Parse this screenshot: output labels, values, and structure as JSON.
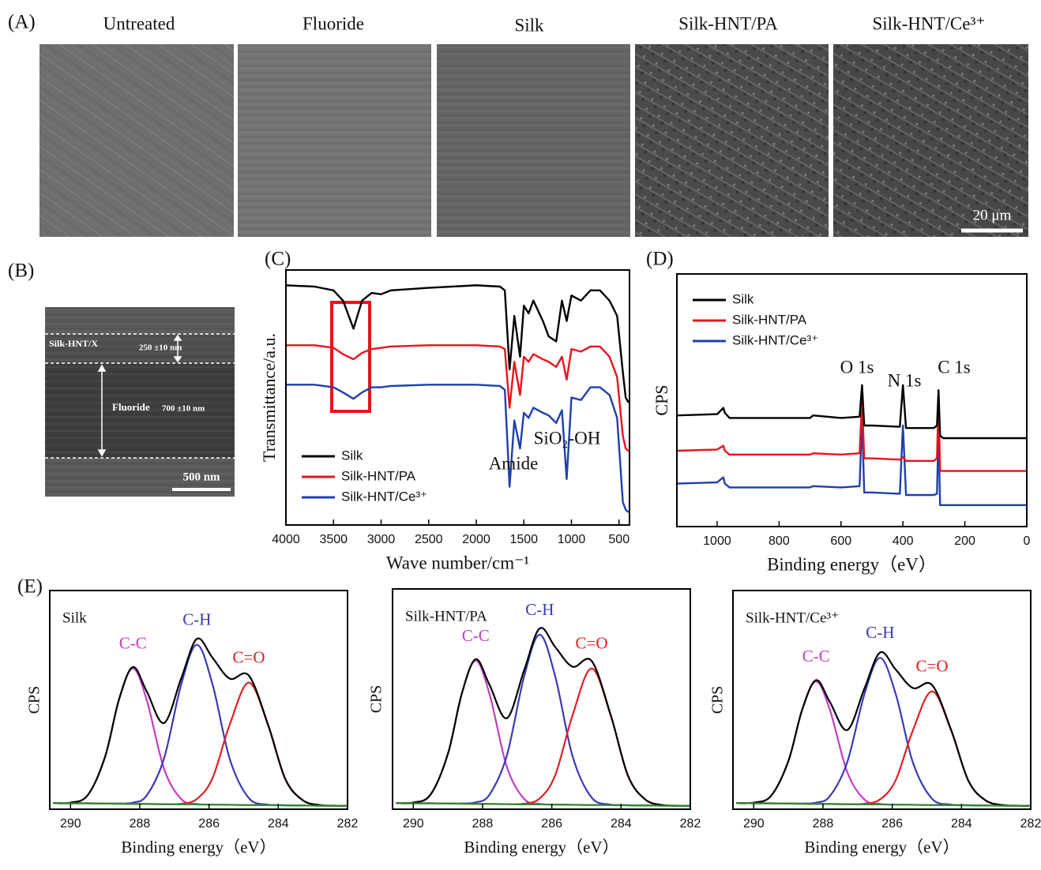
{
  "panel_a": {
    "label": "(A)",
    "captions": [
      "Untreated",
      "Fluoride",
      "Silk",
      "Silk-HNT/PA",
      "Silk-HNT/Ce³⁺"
    ],
    "scale_bar": "20 μm"
  },
  "panel_b": {
    "label": "(B)",
    "layer_top": "Silk-HNT/X",
    "layer_top_thickness": "250 ±10 nm",
    "layer_bottom": "Fluoride",
    "layer_bottom_thickness": "700 ±10 nm",
    "scale_bar": "500 nm"
  },
  "chart_data": [
    {
      "panel_label": "(C)",
      "type": "line",
      "xlabel": "Wave number/cm⁻¹",
      "ylabel": "Transmittance/a.u.",
      "x": [
        4000,
        3700,
        3500,
        3400,
        3290,
        3200,
        3100,
        3000,
        2900,
        2500,
        2000,
        1750,
        1700,
        1650,
        1600,
        1540,
        1500,
        1450,
        1400,
        1300,
        1240,
        1160,
        1100,
        1050,
        1000,
        900,
        800,
        700,
        600,
        520,
        460,
        430,
        400
      ],
      "xlim": [
        4000,
        390
      ],
      "xticks": [
        4000,
        3500,
        3000,
        2500,
        2000,
        1500,
        1000,
        500
      ],
      "ylim": [
        0,
        100
      ],
      "legend": "lower left",
      "annotations": [
        "Amide",
        "SiO₂-OH"
      ],
      "series": [
        {
          "name": "Silk",
          "color": "#000000",
          "values": [
            94,
            93.5,
            92,
            88,
            77,
            88,
            91,
            90.5,
            92,
            93,
            94,
            93.5,
            92,
            61,
            82,
            66,
            86,
            83,
            88,
            80,
            74,
            72,
            88,
            80,
            90,
            88,
            92,
            92,
            88,
            82,
            60,
            50,
            48
          ]
        },
        {
          "name": "Silk-HNT/PA",
          "color": "#e8141b",
          "values": [
            70.5,
            70.5,
            69.5,
            67,
            65,
            67.5,
            69,
            69.5,
            70,
            70.5,
            70.5,
            70,
            69,
            46,
            64,
            51,
            66,
            64,
            67,
            65,
            64,
            62,
            66,
            57,
            69,
            68,
            70,
            70,
            66,
            58,
            35,
            30,
            29
          ]
        },
        {
          "name": "Silk-HNT/Ce³⁺",
          "color": "#1f3fae",
          "values": [
            55,
            55,
            54,
            52,
            49.5,
            52,
            54,
            54,
            54.5,
            55,
            55,
            54.5,
            53,
            15,
            41,
            30,
            44,
            42,
            46,
            44,
            43,
            40,
            45,
            18,
            50,
            49,
            54,
            54,
            51,
            42,
            9,
            6,
            5
          ]
        }
      ]
    },
    {
      "panel_label": "(D)",
      "type": "line",
      "xlabel": "Binding energy（eV）",
      "ylabel": "CPS",
      "x": [
        1130,
        1000,
        980,
        975,
        960,
        900,
        700,
        690,
        600,
        540,
        532,
        525,
        500,
        410,
        400,
        390,
        300,
        290,
        285,
        280,
        270,
        100,
        0
      ],
      "xlim": [
        1130,
        0
      ],
      "xticks": [
        1000,
        800,
        600,
        400,
        200,
        0
      ],
      "ylim": [
        0,
        100
      ],
      "legend": "upper left",
      "annotations": [
        "O 1s",
        "N 1s",
        "C 1s"
      ],
      "series": [
        {
          "name": "Silk",
          "color": "#000000",
          "values": [
            44,
            44.5,
            47,
            45,
            43,
            43,
            43,
            44,
            43,
            43.5,
            56,
            40,
            40,
            39.5,
            56,
            39,
            39,
            40,
            54,
            36,
            35,
            35,
            35
          ]
        },
        {
          "name": "Silk-HNT/PA",
          "color": "#e8141b",
          "values": [
            30,
            30.5,
            32,
            30,
            28.5,
            28.5,
            28.5,
            29,
            28.5,
            29,
            50,
            27,
            27,
            26.5,
            27.5,
            26,
            26,
            27,
            51,
            22,
            22,
            22,
            22
          ]
        },
        {
          "name": "Silk-HNT/Ce³⁺",
          "color": "#1f3fae",
          "values": [
            17,
            17.5,
            19.5,
            17,
            15.5,
            15.5,
            15.5,
            16,
            15.5,
            16,
            43,
            13.5,
            13.5,
            13,
            40,
            12.5,
            12.5,
            13,
            39,
            8.5,
            8.5,
            8.5,
            8.5
          ]
        }
      ]
    },
    {
      "panel_label": "(E)",
      "type": "line",
      "smooth": true,
      "title": "Silk",
      "xlabel": "Binding energy（eV）",
      "ylabel": "CPS",
      "x": [
        290.5,
        290,
        289.5,
        289,
        288.6,
        288.2,
        287.8,
        287.3,
        286.8,
        286.35,
        285.9,
        285.4,
        284.85,
        284.3,
        283.8,
        283.3,
        282.8,
        282.3,
        282
      ],
      "xlim": [
        290.6,
        282
      ],
      "xticks": [
        290,
        288,
        286,
        284,
        282
      ],
      "ylim": [
        0,
        100
      ],
      "series": [
        {
          "name": "C-C",
          "color": "#c23ec2",
          "values": [
            2.8,
            3.0,
            6.5,
            24.1,
            50.1,
            64.4,
            50.0,
            18.5,
            4.6,
            2.4,
            2.1,
            2.0,
            1.9,
            1.9,
            1.8,
            1.7,
            1.6,
            1.6,
            1.5
          ]
        },
        {
          "name": "C-H",
          "color": "#3a3ab8",
          "values": [
            2.8,
            2.7,
            2.7,
            2.6,
            2.6,
            3.0,
            6.3,
            23.2,
            57.3,
            75.2,
            57.2,
            22.9,
            5.1,
            2.1,
            1.8,
            1.7,
            1.6,
            1.6,
            1.5
          ]
        },
        {
          "name": "C=O",
          "color": "#e02020",
          "values": [
            2.8,
            2.7,
            2.7,
            2.6,
            2.5,
            2.4,
            2.4,
            2.3,
            2.5,
            4.7,
            14.2,
            38.8,
            57.9,
            38.7,
            13.9,
            4.2,
            1.9,
            1.6,
            1.5
          ]
        },
        {
          "color": "#000000",
          "values": [
            2.8,
            3.0,
            6.5,
            24.1,
            50.2,
            65.0,
            53.9,
            39.4,
            60.0,
            77.9,
            69.3,
            59.7,
            61.1,
            38.9,
            13.9,
            4.2,
            1.9,
            1.6,
            1.5
          ]
        },
        {
          "color": "#2e8b2e",
          "values": [
            2.8,
            2.7,
            2.7,
            2.6,
            2.5,
            2.4,
            2.4,
            2.3,
            2.2,
            2.2,
            2.1,
            2.0,
            1.9,
            1.9,
            1.8,
            1.7,
            1.6,
            1.6,
            1.5
          ]
        }
      ]
    },
    {
      "type": "line",
      "smooth": true,
      "title": "Silk-HNT/PA",
      "xlabel": "Binding energy（eV）",
      "ylabel": "CPS",
      "x": [
        290.5,
        290,
        289.5,
        289,
        288.6,
        288.2,
        287.8,
        287.3,
        286.8,
        286.35,
        285.9,
        285.4,
        284.85,
        284.3,
        283.8,
        283.3,
        282.8,
        282.3,
        282
      ],
      "xlim": [
        290.6,
        282
      ],
      "xticks": [
        290,
        288,
        286,
        284,
        282
      ],
      "ylim": [
        0,
        100
      ],
      "series": [
        {
          "name": "C-C",
          "color": "#c23ec2",
          "values": [
            2.8,
            3.0,
            6.7,
            25.2,
            52.4,
            67.4,
            52.3,
            19.3,
            4.7,
            2.4,
            2.1,
            2.0,
            1.9,
            1.9,
            1.8,
            1.7,
            1.6,
            1.6,
            1.5
          ]
        },
        {
          "name": "C-H",
          "color": "#3a3ab8",
          "values": [
            2.8,
            2.7,
            2.7,
            2.6,
            2.6,
            3.1,
            6.6,
            24.3,
            60.3,
            79.2,
            60.2,
            24.0,
            5.3,
            2.1,
            1.8,
            1.7,
            1.6,
            1.6,
            1.5
          ]
        },
        {
          "name": "C=O",
          "color": "#e02020",
          "values": [
            2.8,
            2.7,
            2.7,
            2.6,
            2.5,
            2.4,
            2.4,
            2.3,
            2.5,
            4.9,
            15.5,
            42.7,
            63.9,
            42.6,
            15.2,
            4.4,
            1.9,
            1.6,
            1.5
          ]
        },
        {
          "color": "#000000",
          "values": [
            2.8,
            3.0,
            6.7,
            25.2,
            52.5,
            68.1,
            56.5,
            41.3,
            63.1,
            82.1,
            73.6,
            64.7,
            67.3,
            42.8,
            15.2,
            4.4,
            1.9,
            1.6,
            1.5
          ]
        },
        {
          "color": "#2e8b2e",
          "values": [
            2.8,
            2.7,
            2.7,
            2.6,
            2.5,
            2.4,
            2.4,
            2.3,
            2.2,
            2.2,
            2.1,
            2.0,
            1.9,
            1.9,
            1.8,
            1.7,
            1.6,
            1.6,
            1.5
          ]
        }
      ]
    },
    {
      "type": "line",
      "smooth": true,
      "title": "Silk-HNT/Ce³⁺",
      "xlabel": "Binding energy（eV）",
      "ylabel": "CPS",
      "x": [
        290.5,
        290,
        289.5,
        289,
        288.6,
        288.2,
        287.8,
        287.3,
        286.8,
        286.35,
        285.9,
        285.4,
        284.85,
        284.3,
        283.8,
        283.3,
        282.8,
        282.3,
        282
      ],
      "xlim": [
        290.6,
        282
      ],
      "xticks": [
        290,
        288,
        286,
        284,
        282
      ],
      "ylim": [
        0,
        100
      ],
      "series": [
        {
          "name": "C-C",
          "color": "#c23ec2",
          "values": [
            2.8,
            3.0,
            6.1,
            22.0,
            45.5,
            58.4,
            45.4,
            17.0,
            4.4,
            2.4,
            2.1,
            2.0,
            1.9,
            1.9,
            1.8,
            1.7,
            1.6,
            1.6,
            1.5
          ]
        },
        {
          "name": "C-H",
          "color": "#3a3ab8",
          "values": [
            2.8,
            2.7,
            2.7,
            2.6,
            2.6,
            3.0,
            6.0,
            21.5,
            52.8,
            69.2,
            52.7,
            21.2,
            4.8,
            2.1,
            1.8,
            1.7,
            1.6,
            1.6,
            1.5
          ]
        },
        {
          "name": "C=O",
          "color": "#e02020",
          "values": [
            2.8,
            2.7,
            2.7,
            2.6,
            2.5,
            2.4,
            2.4,
            2.3,
            2.5,
            4.5,
            13.3,
            36.2,
            53.9,
            36.1,
            13.0,
            4.0,
            1.9,
            1.6,
            1.5
          ]
        },
        {
          "color": "#000000",
          "values": [
            2.8,
            3.0,
            6.1,
            22.0,
            45.6,
            59.0,
            49.0,
            36.2,
            55.3,
            71.7,
            63.9,
            55.4,
            56.8,
            36.3,
            13.0,
            4.0,
            1.9,
            1.6,
            1.5
          ]
        },
        {
          "color": "#2e8b2e",
          "values": [
            2.8,
            2.7,
            2.7,
            2.6,
            2.5,
            2.4,
            2.4,
            2.3,
            2.2,
            2.2,
            2.1,
            2.0,
            1.9,
            1.9,
            1.8,
            1.7,
            1.6,
            1.6,
            1.5
          ]
        }
      ]
    }
  ]
}
